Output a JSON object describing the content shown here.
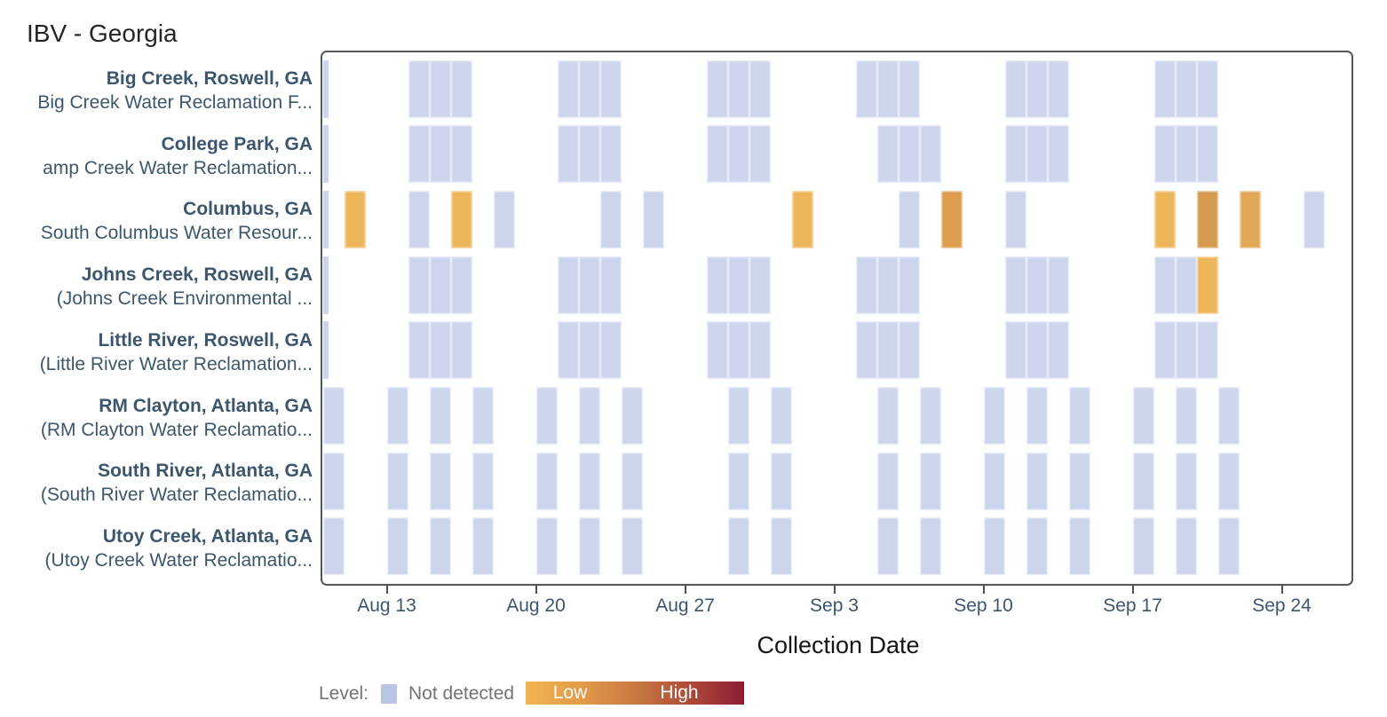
{
  "chart_data": {
    "type": "heatmap",
    "title": "IBV - Georgia",
    "xlabel": "Collection Date",
    "grid": false,
    "legend_position": "bottom-left",
    "legend": {
      "label": "Level:",
      "not_detected_label": "Not detected",
      "low_label": "Low",
      "high_label": "High",
      "not_detected_swatch_color": "#b9c5e7",
      "gradient": [
        "#f1b64f",
        "#e29b4a",
        "#c97a41",
        "#ad4a39",
        "#8e1c33"
      ]
    },
    "palette": {
      "nd": "#cdd5ec",
      "low": "#eeb65b",
      "low_med": "#e3a758",
      "med": "#dd9e4f",
      "med_high": "#d5994f"
    },
    "x_axis": {
      "start_date": "Aug 10",
      "end_date": "Sep 25",
      "days_shown": 48,
      "ticks": [
        {
          "label": "Aug 13",
          "day": 3
        },
        {
          "label": "Aug 20",
          "day": 10
        },
        {
          "label": "Aug 27",
          "day": 17
        },
        {
          "label": "Sep 3",
          "day": 24
        },
        {
          "label": "Sep 10",
          "day": 31
        },
        {
          "label": "Sep 17",
          "day": 38
        },
        {
          "label": "Sep 24",
          "day": 45
        }
      ]
    },
    "rows": [
      {
        "site": "Big Creek, Roswell, GA",
        "facility": "Big Creek Water Reclamation F...",
        "edge_clip": true,
        "samples": [
          {
            "day": 4,
            "date": "Aug 14",
            "level": "nd"
          },
          {
            "day": 5,
            "date": "Aug 15",
            "level": "nd"
          },
          {
            "day": 6,
            "date": "Aug 16",
            "level": "nd"
          },
          {
            "day": 11,
            "date": "Aug 21",
            "level": "nd"
          },
          {
            "day": 12,
            "date": "Aug 22",
            "level": "nd"
          },
          {
            "day": 13,
            "date": "Aug 23",
            "level": "nd"
          },
          {
            "day": 18,
            "date": "Aug 28",
            "level": "nd"
          },
          {
            "day": 19,
            "date": "Aug 29",
            "level": "nd"
          },
          {
            "day": 20,
            "date": "Aug 30",
            "level": "nd"
          },
          {
            "day": 25,
            "date": "Sep 4",
            "level": "nd"
          },
          {
            "day": 26,
            "date": "Sep 5",
            "level": "nd"
          },
          {
            "day": 27,
            "date": "Sep 6",
            "level": "nd"
          },
          {
            "day": 32,
            "date": "Sep 11",
            "level": "nd"
          },
          {
            "day": 33,
            "date": "Sep 12",
            "level": "nd"
          },
          {
            "day": 34,
            "date": "Sep 13",
            "level": "nd"
          },
          {
            "day": 39,
            "date": "Sep 18",
            "level": "nd"
          },
          {
            "day": 40,
            "date": "Sep 19",
            "level": "nd"
          },
          {
            "day": 41,
            "date": "Sep 20",
            "level": "nd"
          }
        ]
      },
      {
        "site": "College Park, GA",
        "facility": "amp Creek Water Reclamation...",
        "edge_clip": true,
        "samples": [
          {
            "day": 4,
            "date": "Aug 14",
            "level": "nd"
          },
          {
            "day": 5,
            "date": "Aug 15",
            "level": "nd"
          },
          {
            "day": 6,
            "date": "Aug 16",
            "level": "nd"
          },
          {
            "day": 11,
            "date": "Aug 21",
            "level": "nd"
          },
          {
            "day": 12,
            "date": "Aug 22",
            "level": "nd"
          },
          {
            "day": 13,
            "date": "Aug 23",
            "level": "nd"
          },
          {
            "day": 18,
            "date": "Aug 28",
            "level": "nd"
          },
          {
            "day": 19,
            "date": "Aug 29",
            "level": "nd"
          },
          {
            "day": 20,
            "date": "Aug 30",
            "level": "nd"
          },
          {
            "day": 26,
            "date": "Sep 5",
            "level": "nd"
          },
          {
            "day": 27,
            "date": "Sep 6",
            "level": "nd"
          },
          {
            "day": 28,
            "date": "Sep 7",
            "level": "nd"
          },
          {
            "day": 32,
            "date": "Sep 11",
            "level": "nd"
          },
          {
            "day": 33,
            "date": "Sep 12",
            "level": "nd"
          },
          {
            "day": 34,
            "date": "Sep 13",
            "level": "nd"
          },
          {
            "day": 39,
            "date": "Sep 18",
            "level": "nd"
          },
          {
            "day": 40,
            "date": "Sep 19",
            "level": "nd"
          },
          {
            "day": 41,
            "date": "Sep 20",
            "level": "nd"
          }
        ]
      },
      {
        "site": "Columbus, GA",
        "facility": "South Columbus Water Resour...",
        "edge_clip": true,
        "samples": [
          {
            "day": 1,
            "date": "Aug 11",
            "level": "low"
          },
          {
            "day": 4,
            "date": "Aug 14",
            "level": "nd"
          },
          {
            "day": 6,
            "date": "Aug 16",
            "level": "low"
          },
          {
            "day": 8,
            "date": "Aug 18",
            "level": "nd"
          },
          {
            "day": 13,
            "date": "Aug 23",
            "level": "nd"
          },
          {
            "day": 15,
            "date": "Aug 25",
            "level": "nd"
          },
          {
            "day": 22,
            "date": "Sep 1",
            "level": "low"
          },
          {
            "day": 27,
            "date": "Sep 6",
            "level": "nd"
          },
          {
            "day": 29,
            "date": "Sep 8",
            "level": "med"
          },
          {
            "day": 32,
            "date": "Sep 11",
            "level": "nd"
          },
          {
            "day": 39,
            "date": "Sep 18",
            "level": "low"
          },
          {
            "day": 41,
            "date": "Sep 20",
            "level": "med_high"
          },
          {
            "day": 43,
            "date": "Sep 22",
            "level": "low_med"
          },
          {
            "day": 46,
            "date": "Sep 25",
            "level": "nd"
          }
        ]
      },
      {
        "site": "Johns Creek, Roswell, GA",
        "facility": "(Johns Creek Environmental ...",
        "edge_clip": true,
        "samples": [
          {
            "day": 4,
            "date": "Aug 14",
            "level": "nd"
          },
          {
            "day": 5,
            "date": "Aug 15",
            "level": "nd"
          },
          {
            "day": 6,
            "date": "Aug 16",
            "level": "nd"
          },
          {
            "day": 11,
            "date": "Aug 21",
            "level": "nd"
          },
          {
            "day": 12,
            "date": "Aug 22",
            "level": "nd"
          },
          {
            "day": 13,
            "date": "Aug 23",
            "level": "nd"
          },
          {
            "day": 18,
            "date": "Aug 28",
            "level": "nd"
          },
          {
            "day": 19,
            "date": "Aug 29",
            "level": "nd"
          },
          {
            "day": 20,
            "date": "Aug 30",
            "level": "nd"
          },
          {
            "day": 25,
            "date": "Sep 4",
            "level": "nd"
          },
          {
            "day": 26,
            "date": "Sep 5",
            "level": "nd"
          },
          {
            "day": 27,
            "date": "Sep 6",
            "level": "nd"
          },
          {
            "day": 32,
            "date": "Sep 11",
            "level": "nd"
          },
          {
            "day": 33,
            "date": "Sep 12",
            "level": "nd"
          },
          {
            "day": 34,
            "date": "Sep 13",
            "level": "nd"
          },
          {
            "day": 39,
            "date": "Sep 18",
            "level": "nd"
          },
          {
            "day": 40,
            "date": "Sep 19",
            "level": "nd"
          },
          {
            "day": 41,
            "date": "Sep 20",
            "level": "low"
          }
        ]
      },
      {
        "site": "Little River, Roswell, GA",
        "facility": "(Little River Water Reclamation...",
        "edge_clip": true,
        "samples": [
          {
            "day": 4,
            "date": "Aug 14",
            "level": "nd"
          },
          {
            "day": 5,
            "date": "Aug 15",
            "level": "nd"
          },
          {
            "day": 6,
            "date": "Aug 16",
            "level": "nd"
          },
          {
            "day": 11,
            "date": "Aug 21",
            "level": "nd"
          },
          {
            "day": 12,
            "date": "Aug 22",
            "level": "nd"
          },
          {
            "day": 13,
            "date": "Aug 23",
            "level": "nd"
          },
          {
            "day": 18,
            "date": "Aug 28",
            "level": "nd"
          },
          {
            "day": 19,
            "date": "Aug 29",
            "level": "nd"
          },
          {
            "day": 20,
            "date": "Aug 30",
            "level": "nd"
          },
          {
            "day": 25,
            "date": "Sep 4",
            "level": "nd"
          },
          {
            "day": 26,
            "date": "Sep 5",
            "level": "nd"
          },
          {
            "day": 27,
            "date": "Sep 6",
            "level": "nd"
          },
          {
            "day": 32,
            "date": "Sep 11",
            "level": "nd"
          },
          {
            "day": 33,
            "date": "Sep 12",
            "level": "nd"
          },
          {
            "day": 34,
            "date": "Sep 13",
            "level": "nd"
          },
          {
            "day": 39,
            "date": "Sep 18",
            "level": "nd"
          },
          {
            "day": 40,
            "date": "Sep 19",
            "level": "nd"
          },
          {
            "day": 41,
            "date": "Sep 20",
            "level": "nd"
          }
        ]
      },
      {
        "site": "RM Clayton, Atlanta, GA",
        "facility": "(RM Clayton Water Reclamatio...",
        "edge_clip": false,
        "samples": [
          {
            "day": 0,
            "date": "Aug 10",
            "level": "nd"
          },
          {
            "day": 3,
            "date": "Aug 13",
            "level": "nd"
          },
          {
            "day": 5,
            "date": "Aug 15",
            "level": "nd"
          },
          {
            "day": 7,
            "date": "Aug 17",
            "level": "nd"
          },
          {
            "day": 10,
            "date": "Aug 20",
            "level": "nd"
          },
          {
            "day": 12,
            "date": "Aug 22",
            "level": "nd"
          },
          {
            "day": 14,
            "date": "Aug 24",
            "level": "nd"
          },
          {
            "day": 19,
            "date": "Aug 29",
            "level": "nd"
          },
          {
            "day": 21,
            "date": "Aug 31",
            "level": "nd"
          },
          {
            "day": 26,
            "date": "Sep 5",
            "level": "nd"
          },
          {
            "day": 28,
            "date": "Sep 7",
            "level": "nd"
          },
          {
            "day": 31,
            "date": "Sep 10",
            "level": "nd"
          },
          {
            "day": 33,
            "date": "Sep 12",
            "level": "nd"
          },
          {
            "day": 35,
            "date": "Sep 14",
            "level": "nd"
          },
          {
            "day": 38,
            "date": "Sep 17",
            "level": "nd"
          },
          {
            "day": 40,
            "date": "Sep 19",
            "level": "nd"
          },
          {
            "day": 42,
            "date": "Sep 21",
            "level": "nd"
          }
        ]
      },
      {
        "site": "South River, Atlanta, GA",
        "facility": "(South River Water Reclamatio...",
        "edge_clip": false,
        "samples": [
          {
            "day": 0,
            "date": "Aug 10",
            "level": "nd"
          },
          {
            "day": 3,
            "date": "Aug 13",
            "level": "nd"
          },
          {
            "day": 5,
            "date": "Aug 15",
            "level": "nd"
          },
          {
            "day": 7,
            "date": "Aug 17",
            "level": "nd"
          },
          {
            "day": 10,
            "date": "Aug 20",
            "level": "nd"
          },
          {
            "day": 12,
            "date": "Aug 22",
            "level": "nd"
          },
          {
            "day": 14,
            "date": "Aug 24",
            "level": "nd"
          },
          {
            "day": 19,
            "date": "Aug 29",
            "level": "nd"
          },
          {
            "day": 21,
            "date": "Aug 31",
            "level": "nd"
          },
          {
            "day": 26,
            "date": "Sep 5",
            "level": "nd"
          },
          {
            "day": 28,
            "date": "Sep 7",
            "level": "nd"
          },
          {
            "day": 31,
            "date": "Sep 10",
            "level": "nd"
          },
          {
            "day": 33,
            "date": "Sep 12",
            "level": "nd"
          },
          {
            "day": 35,
            "date": "Sep 14",
            "level": "nd"
          },
          {
            "day": 38,
            "date": "Sep 17",
            "level": "nd"
          },
          {
            "day": 40,
            "date": "Sep 19",
            "level": "nd"
          },
          {
            "day": 42,
            "date": "Sep 21",
            "level": "nd"
          }
        ]
      },
      {
        "site": "Utoy Creek, Atlanta, GA",
        "facility": "(Utoy Creek Water Reclamatio...",
        "edge_clip": false,
        "samples": [
          {
            "day": 0,
            "date": "Aug 10",
            "level": "nd"
          },
          {
            "day": 3,
            "date": "Aug 13",
            "level": "nd"
          },
          {
            "day": 5,
            "date": "Aug 15",
            "level": "nd"
          },
          {
            "day": 7,
            "date": "Aug 17",
            "level": "nd"
          },
          {
            "day": 10,
            "date": "Aug 20",
            "level": "nd"
          },
          {
            "day": 12,
            "date": "Aug 22",
            "level": "nd"
          },
          {
            "day": 14,
            "date": "Aug 24",
            "level": "nd"
          },
          {
            "day": 19,
            "date": "Aug 29",
            "level": "nd"
          },
          {
            "day": 21,
            "date": "Aug 31",
            "level": "nd"
          },
          {
            "day": 26,
            "date": "Sep 5",
            "level": "nd"
          },
          {
            "day": 28,
            "date": "Sep 7",
            "level": "nd"
          },
          {
            "day": 31,
            "date": "Sep 10",
            "level": "nd"
          },
          {
            "day": 33,
            "date": "Sep 12",
            "level": "nd"
          },
          {
            "day": 35,
            "date": "Sep 14",
            "level": "nd"
          },
          {
            "day": 38,
            "date": "Sep 17",
            "level": "nd"
          },
          {
            "day": 40,
            "date": "Sep 19",
            "level": "nd"
          },
          {
            "day": 42,
            "date": "Sep 21",
            "level": "nd"
          }
        ]
      }
    ]
  }
}
